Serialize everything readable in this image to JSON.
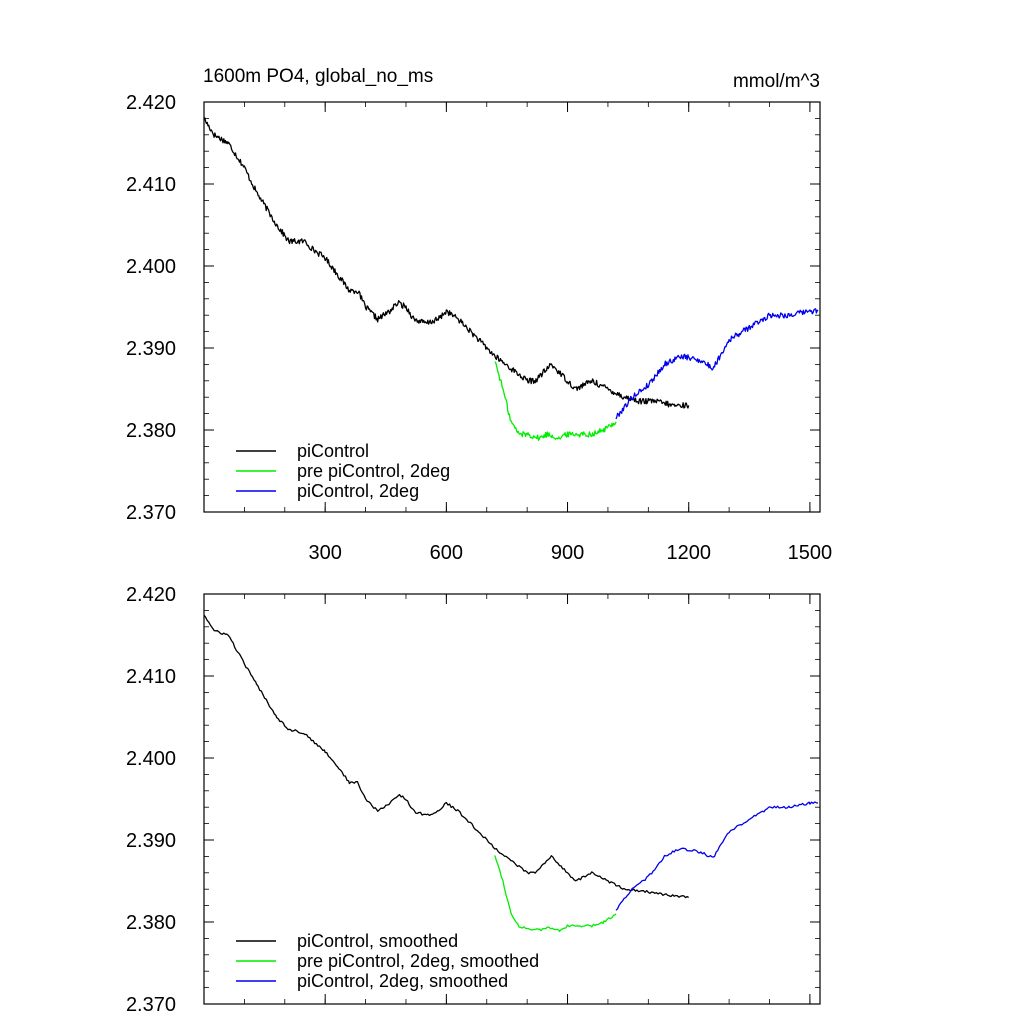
{
  "chart_data": [
    {
      "type": "line",
      "title": "1600m PO4, global_no_ms",
      "units": "mmol/m^3",
      "xlim": [
        0,
        1525
      ],
      "ylim": [
        2.37,
        2.42
      ],
      "xticks": [
        300,
        600,
        900,
        1200,
        1500
      ],
      "xtick_labels": [
        "300",
        "600",
        "900",
        "1200",
        "1500"
      ],
      "yticks": [
        2.37,
        2.38,
        2.39,
        2.4,
        2.41,
        2.42
      ],
      "ytick_labels": [
        "2.370",
        "2.380",
        "2.390",
        "2.400",
        "2.410",
        "2.420"
      ],
      "legend_position": "bottom-left",
      "series": [
        {
          "name": "piControl",
          "color": "#000000",
          "x": [
            0,
            25,
            60,
            100,
            130,
            180,
            210,
            250,
            270,
            300,
            330,
            360,
            380,
            400,
            430,
            460,
            480,
            500,
            520,
            550,
            580,
            600,
            630,
            660,
            700,
            720,
            760,
            800,
            820,
            860,
            880,
            920,
            960,
            1000,
            1040,
            1080,
            1120,
            1160,
            1200
          ],
          "y": [
            2.418,
            2.416,
            2.415,
            2.412,
            2.409,
            2.405,
            2.403,
            2.403,
            2.402,
            2.401,
            2.399,
            2.397,
            2.397,
            2.395,
            2.3935,
            2.3945,
            2.3955,
            2.395,
            2.3935,
            2.393,
            2.3935,
            2.3945,
            2.3935,
            2.392,
            2.39,
            2.389,
            2.3875,
            2.386,
            2.386,
            2.388,
            2.387,
            2.385,
            2.386,
            2.385,
            2.384,
            2.3835,
            2.3835,
            2.383,
            2.383
          ]
        },
        {
          "name": "pre piControl, 2deg",
          "color": "#00ee00",
          "x": [
            720,
            740,
            760,
            780,
            800,
            830,
            850,
            880,
            900,
            930,
            960,
            990,
            1020
          ],
          "y": [
            2.3885,
            2.385,
            2.381,
            2.3795,
            2.3795,
            2.379,
            2.3795,
            2.379,
            2.3795,
            2.3795,
            2.3795,
            2.38,
            2.381
          ]
        },
        {
          "name": "piControl, 2deg",
          "color": "#0000ee",
          "x": [
            1020,
            1060,
            1100,
            1140,
            1180,
            1230,
            1260,
            1300,
            1350,
            1400,
            1450,
            1500,
            1520
          ],
          "y": [
            2.3815,
            2.384,
            2.3855,
            2.388,
            2.389,
            2.3885,
            2.3875,
            2.391,
            2.3925,
            2.394,
            2.394,
            2.3945,
            2.3945
          ]
        }
      ]
    },
    {
      "type": "line",
      "xlim": [
        0,
        1525
      ],
      "ylim": [
        2.37,
        2.42
      ],
      "xticks": [
        300,
        600,
        900,
        1200,
        1500
      ],
      "yticks": [
        2.37,
        2.38,
        2.39,
        2.4,
        2.41,
        2.42
      ],
      "ytick_labels": [
        "2.370",
        "2.380",
        "2.390",
        "2.400",
        "2.410",
        "2.420"
      ],
      "legend_position": "bottom-left",
      "series": [
        {
          "name": "piControl, smoothed",
          "color": "#000000",
          "x": [
            0,
            25,
            60,
            100,
            130,
            180,
            210,
            250,
            270,
            300,
            330,
            360,
            380,
            400,
            430,
            460,
            480,
            500,
            520,
            550,
            580,
            600,
            630,
            660,
            700,
            720,
            760,
            800,
            820,
            860,
            880,
            920,
            960,
            1000,
            1040,
            1080,
            1120,
            1160,
            1200
          ],
          "y": [
            2.4175,
            2.4155,
            2.415,
            2.4115,
            2.409,
            2.405,
            2.4035,
            2.403,
            2.402,
            2.4008,
            2.399,
            2.397,
            2.397,
            2.395,
            2.3935,
            2.3945,
            2.3955,
            2.395,
            2.3935,
            2.393,
            2.3935,
            2.3945,
            2.3935,
            2.392,
            2.39,
            2.389,
            2.3875,
            2.386,
            2.386,
            2.388,
            2.387,
            2.385,
            2.386,
            2.385,
            2.384,
            2.3838,
            2.3835,
            2.3832,
            2.383
          ]
        },
        {
          "name": "pre piControl, 2deg, smoothed",
          "color": "#00ee00",
          "x": [
            720,
            740,
            760,
            780,
            800,
            830,
            850,
            880,
            900,
            930,
            960,
            990,
            1020
          ],
          "y": [
            2.3882,
            2.385,
            2.381,
            2.3795,
            2.3792,
            2.379,
            2.3793,
            2.379,
            2.3795,
            2.3795,
            2.3795,
            2.38,
            2.381
          ]
        },
        {
          "name": "piControl, 2deg, smoothed",
          "color": "#0000ee",
          "x": [
            1020,
            1060,
            1100,
            1140,
            1180,
            1230,
            1260,
            1300,
            1350,
            1400,
            1450,
            1500,
            1520
          ],
          "y": [
            2.3815,
            2.384,
            2.3855,
            2.388,
            2.389,
            2.3885,
            2.3878,
            2.391,
            2.3925,
            2.394,
            2.394,
            2.3945,
            2.3945
          ]
        }
      ]
    }
  ]
}
